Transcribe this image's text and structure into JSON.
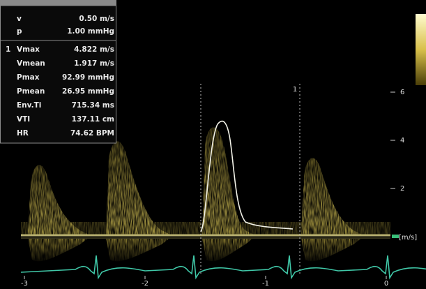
{
  "measurements": {
    "settings": [
      {
        "label": "v",
        "value": "0.50 m/s"
      },
      {
        "label": "p",
        "value": "1.00 mmHg"
      }
    ],
    "index": "1",
    "results": [
      {
        "label": "Vmax",
        "value": "4.822 m/s"
      },
      {
        "label": "Vmean",
        "value": "1.917 m/s"
      },
      {
        "label": "Pmax",
        "value": "92.99 mmHg"
      },
      {
        "label": "Pmean",
        "value": "26.95 mmHg"
      },
      {
        "label": "Env.Ti",
        "value": "715.34 ms"
      },
      {
        "label": "VTI",
        "value": "137.11 cm"
      },
      {
        "label": "HR",
        "value": "74.62 BPM"
      }
    ]
  },
  "velocity_scale": {
    "ticks": [
      "6",
      "4",
      "2"
    ],
    "unit": "[m/s]"
  },
  "time_axis": {
    "labels": [
      "-3",
      "-2",
      "-1",
      "0"
    ]
  },
  "cursor": {
    "label": "1"
  }
}
